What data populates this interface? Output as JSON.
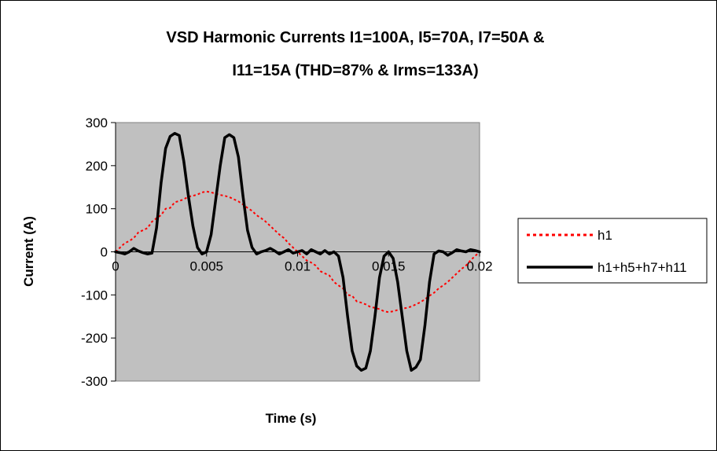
{
  "chart_data": {
    "type": "line",
    "title_line1": "VSD Harmonic Currents I1=100A, I5=70A, I7=50A &",
    "title_line2": "I11=15A (THD=87% & Irms=133A)",
    "xlabel": "Time (s)",
    "ylabel": "Current (A)",
    "xlim": [
      0,
      0.02
    ],
    "ylim": [
      -300,
      300
    ],
    "x_ticks": [
      0,
      0.005,
      0.01,
      0.015,
      0.02
    ],
    "x_tick_labels": [
      "0",
      "0.005",
      "0.01",
      "0.015",
      "0.02"
    ],
    "y_ticks": [
      300,
      200,
      100,
      0,
      -100,
      -200,
      -300
    ],
    "y_tick_labels": [
      "300",
      "200",
      "100",
      "0",
      "-100",
      "-200",
      "-300"
    ],
    "plot_background": "#c0c0c0",
    "legend_position": "right",
    "series": [
      {
        "name": "h1",
        "color": "#ff0000",
        "style": "dotted",
        "x": [
          0,
          0.00025,
          0.0005,
          0.00075,
          0.001,
          0.00125,
          0.0015,
          0.00175,
          0.002,
          0.00225,
          0.0025,
          0.00275,
          0.003,
          0.00325,
          0.0035,
          0.00375,
          0.004,
          0.00425,
          0.0045,
          0.00475,
          0.005,
          0.00525,
          0.0055,
          0.00575,
          0.006,
          0.00625,
          0.0065,
          0.00675,
          0.007,
          0.00725,
          0.0075,
          0.00775,
          0.008,
          0.00825,
          0.0085,
          0.00875,
          0.009,
          0.00925,
          0.0095,
          0.00975,
          0.01,
          0.01025,
          0.0105,
          0.01075,
          0.011,
          0.01125,
          0.0115,
          0.01175,
          0.012,
          0.01225,
          0.0125,
          0.01275,
          0.013,
          0.01325,
          0.0135,
          0.01375,
          0.014,
          0.01425,
          0.0145,
          0.01475,
          0.015,
          0.01525,
          0.0155,
          0.01575,
          0.016,
          0.01625,
          0.0165,
          0.01675,
          0.017,
          0.01725,
          0.0175,
          0.01775,
          0.018,
          0.01825,
          0.0185,
          0.01875,
          0.019,
          0.01925,
          0.0195,
          0.01975,
          0.02
        ],
        "y": [
          0,
          10,
          20,
          25,
          32,
          45,
          50,
          55,
          70,
          78,
          85,
          100,
          102,
          115,
          118,
          122,
          128,
          130,
          133,
          138,
          140,
          138,
          135,
          132,
          130,
          127,
          122,
          117,
          110,
          102,
          95,
          85,
          78,
          70,
          60,
          50,
          40,
          32,
          20,
          10,
          0,
          -10,
          -20,
          -25,
          -32,
          -45,
          -50,
          -55,
          -70,
          -78,
          -85,
          -100,
          -102,
          -115,
          -118,
          -122,
          -128,
          -130,
          -133,
          -138,
          -140,
          -138,
          -135,
          -132,
          -130,
          -127,
          -122,
          -117,
          -110,
          -102,
          -95,
          -85,
          -78,
          -70,
          -60,
          -50,
          -40,
          -32,
          -20,
          -10,
          0
        ]
      },
      {
        "name": "h1+h5+h7+h11",
        "color": "#000000",
        "style": "solid",
        "x": [
          0,
          0.00025,
          0.0005,
          0.00075,
          0.001,
          0.00125,
          0.0015,
          0.00175,
          0.002,
          0.00225,
          0.0025,
          0.00275,
          0.003,
          0.00325,
          0.0035,
          0.00375,
          0.004,
          0.00425,
          0.0045,
          0.00475,
          0.005,
          0.00525,
          0.0055,
          0.00575,
          0.006,
          0.00625,
          0.0065,
          0.00675,
          0.007,
          0.00725,
          0.0075,
          0.00775,
          0.008,
          0.00825,
          0.0085,
          0.00875,
          0.009,
          0.00925,
          0.0095,
          0.00975,
          0.01,
          0.01025,
          0.0105,
          0.01075,
          0.011,
          0.01125,
          0.0115,
          0.01175,
          0.012,
          0.01225,
          0.0125,
          0.01275,
          0.013,
          0.01325,
          0.0135,
          0.01375,
          0.014,
          0.01425,
          0.0145,
          0.01475,
          0.015,
          0.01525,
          0.0155,
          0.01575,
          0.016,
          0.01625,
          0.0165,
          0.01675,
          0.017,
          0.01725,
          0.0175,
          0.01775,
          0.018,
          0.01825,
          0.0185,
          0.01875,
          0.019,
          0.01925,
          0.0195,
          0.01975,
          0.02
        ],
        "y": [
          0,
          -2,
          -5,
          0,
          8,
          2,
          -2,
          -5,
          -3,
          55,
          160,
          240,
          268,
          275,
          270,
          210,
          130,
          60,
          10,
          -5,
          0,
          40,
          120,
          200,
          265,
          272,
          265,
          220,
          130,
          50,
          10,
          -5,
          0,
          3,
          8,
          2,
          -5,
          0,
          5,
          -3,
          0,
          3,
          -5,
          5,
          0,
          -5,
          3,
          -5,
          0,
          -10,
          -60,
          -150,
          -230,
          -265,
          -275,
          -270,
          -230,
          -150,
          -60,
          -10,
          0,
          -15,
          -70,
          -150,
          -230,
          -275,
          -268,
          -250,
          -170,
          -70,
          -5,
          2,
          0,
          -8,
          -2,
          5,
          2,
          0,
          5,
          3,
          0
        ]
      }
    ]
  }
}
